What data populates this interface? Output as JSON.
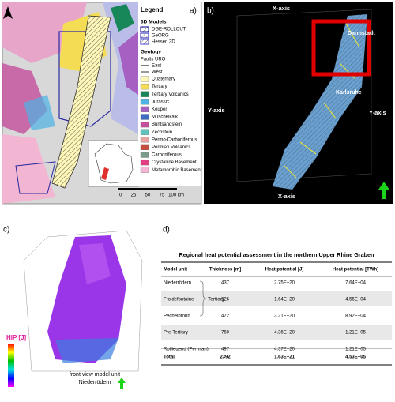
{
  "panels": {
    "a": {
      "label": "a)",
      "legend": {
        "title": "Legend",
        "models_heading": "3D Models",
        "models": [
          {
            "name": "DGE-ROLLOUT",
            "color": "#2a2aa0"
          },
          {
            "name": "GeORG",
            "color": "#4040c0"
          },
          {
            "name": "Hessen 3D",
            "color": "#6060d0"
          }
        ],
        "geology_heading": "Geology",
        "faults_heading": "Faults URG",
        "faults": [
          {
            "name": "East",
            "color": "#222222"
          },
          {
            "name": "West",
            "color": "#555555"
          }
        ],
        "units": [
          {
            "name": "Quaternary",
            "color": "#fff7b8"
          },
          {
            "name": "Tertiary",
            "color": "#f5dc55"
          },
          {
            "name": "Tertiary Volcanics",
            "color": "#17875a"
          },
          {
            "name": "Jurassic",
            "color": "#4db4e6"
          },
          {
            "name": "Keuper",
            "color": "#a660c2"
          },
          {
            "name": "Muschelkalk",
            "color": "#3e6cc2"
          },
          {
            "name": "Buntsandstein",
            "color": "#c44f9c"
          },
          {
            "name": "Zechstein",
            "color": "#5ec4bd"
          },
          {
            "name": "Permo-Carboniferous",
            "color": "#e9a2a2"
          },
          {
            "name": "Permian Volcanics",
            "color": "#c64c3e"
          },
          {
            "name": "Carboniferous",
            "color": "#7b9a8a"
          },
          {
            "name": "Crystalline Basement",
            "color": "#e23f82"
          },
          {
            "name": "Metamorphic Basement",
            "color": "#f2b5d2"
          }
        ]
      },
      "scale": [
        "0",
        "25",
        "50",
        "75",
        "100 km"
      ]
    },
    "b": {
      "label": "b)",
      "axis_labels": [
        "X-axis",
        "X-axis",
        "Y-axis",
        "Y-axis"
      ],
      "places": [
        "Darmstadt",
        "Karlsruhe"
      ]
    },
    "c": {
      "label": "c)",
      "colorbar_title": "HIP [J]",
      "caption": [
        "front view model unit",
        "Niederrödern"
      ]
    },
    "d": {
      "label": "d)",
      "table": {
        "title": "Regional heat potential assessment in the northern Upper Rhine Graben",
        "columns": [
          "Model unit",
          "Thickness [m]",
          "Heat potential [J]",
          "Heat potential [TWh]"
        ],
        "rows": [
          [
            "Niederrödern",
            "437",
            "2.75E+20",
            "7.64E+04"
          ],
          [
            "Froidefontaine",
            "226",
            "1.64E+20",
            "4.56E+04"
          ],
          [
            "Pechelbronn",
            "472",
            "3.21E+20",
            "8.92E+04"
          ],
          [
            "Pre-Tertiary",
            "760",
            "4.36E+20",
            "1.21E+05"
          ],
          [
            "Rotliegend (Permian)",
            "497",
            "4.37E+20",
            "1.21E+05"
          ]
        ],
        "group_label": "Tertiary",
        "total": [
          "Total",
          "2392",
          "1.63E+21",
          "4.53E+05"
        ]
      }
    }
  }
}
